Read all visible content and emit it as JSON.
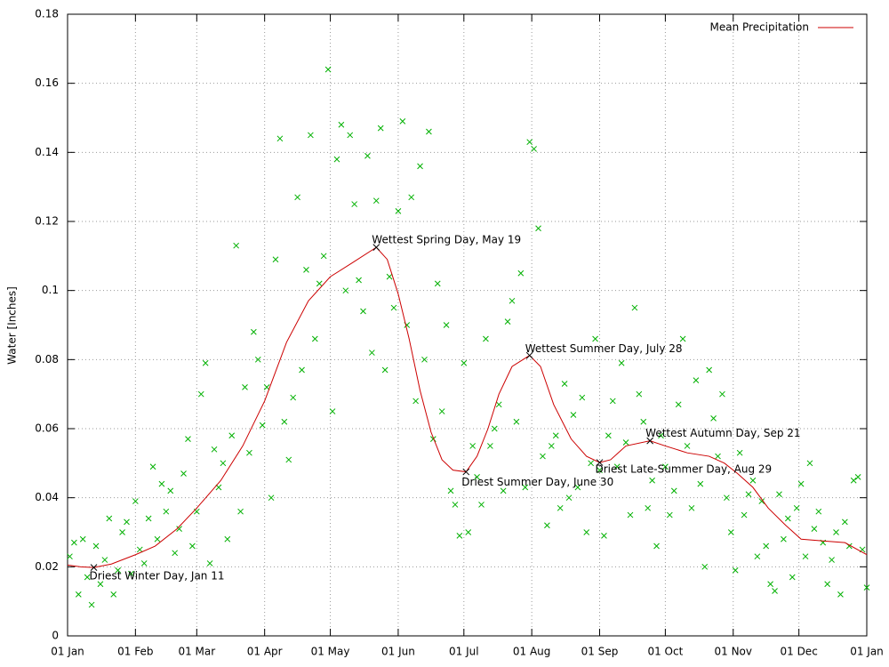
{
  "chart_data": {
    "type": "scatter",
    "ylabel": "Water [Inches]",
    "xlim": [
      0,
      365
    ],
    "ylim": [
      0,
      0.18
    ],
    "xticks": [
      {
        "value": 0,
        "label": "01 Jan"
      },
      {
        "value": 31,
        "label": "01 Feb"
      },
      {
        "value": 59,
        "label": "01 Mar"
      },
      {
        "value": 90,
        "label": "01 Apr"
      },
      {
        "value": 120,
        "label": "01 May"
      },
      {
        "value": 151,
        "label": "01 Jun"
      },
      {
        "value": 181,
        "label": "01 Jul"
      },
      {
        "value": 212,
        "label": "01 Aug"
      },
      {
        "value": 243,
        "label": "01 Sep"
      },
      {
        "value": 273,
        "label": "01 Oct"
      },
      {
        "value": 304,
        "label": "01 Nov"
      },
      {
        "value": 334,
        "label": "01 Dec"
      },
      {
        "value": 365,
        "label": "01 Jan"
      }
    ],
    "yticks": [
      0,
      0.02,
      0.04,
      0.06,
      0.08,
      0.1,
      0.12,
      0.14,
      0.16,
      0.18
    ],
    "grid": true,
    "legend": "top-right",
    "points": {
      "color": "#00b000",
      "x": [
        1,
        3,
        5,
        7,
        9,
        11,
        13,
        15,
        17,
        19,
        21,
        23,
        25,
        27,
        29,
        31,
        33,
        35,
        37,
        39,
        41,
        43,
        45,
        47,
        49,
        51,
        53,
        55,
        57,
        59,
        61,
        63,
        65,
        67,
        69,
        71,
        73,
        75,
        77,
        79,
        81,
        83,
        85,
        87,
        89,
        91,
        93,
        95,
        97,
        99,
        101,
        103,
        105,
        107,
        109,
        111,
        113,
        115,
        117,
        119,
        121,
        123,
        125,
        127,
        129,
        131,
        133,
        135,
        137,
        139,
        141,
        143,
        145,
        147,
        149,
        151,
        153,
        155,
        157,
        159,
        161,
        163,
        165,
        167,
        169,
        171,
        173,
        175,
        177,
        179,
        181,
        183,
        185,
        187,
        189,
        191,
        193,
        195,
        197,
        199,
        201,
        203,
        205,
        207,
        209,
        211,
        213,
        215,
        217,
        219,
        221,
        223,
        225,
        227,
        229,
        231,
        233,
        235,
        237,
        239,
        241,
        243,
        245,
        247,
        249,
        251,
        253,
        255,
        257,
        259,
        261,
        263,
        265,
        267,
        269,
        271,
        273,
        275,
        277,
        279,
        281,
        283,
        285,
        287,
        289,
        291,
        293,
        295,
        297,
        299,
        301,
        303,
        305,
        307,
        309,
        311,
        313,
        315,
        317,
        319,
        321,
        323,
        325,
        327,
        329,
        331,
        333,
        335,
        337,
        339,
        341,
        343,
        345,
        347,
        349,
        351,
        353,
        355,
        357,
        359,
        361,
        363,
        365
      ],
      "values": [
        0.023,
        0.027,
        0.012,
        0.028,
        0.017,
        0.009,
        0.026,
        0.015,
        0.022,
        0.034,
        0.012,
        0.019,
        0.03,
        0.033,
        0.018,
        0.039,
        0.025,
        0.021,
        0.034,
        0.049,
        0.028,
        0.044,
        0.036,
        0.042,
        0.024,
        0.031,
        0.047,
        0.057,
        0.026,
        0.036,
        0.07,
        0.079,
        0.021,
        0.054,
        0.043,
        0.05,
        0.028,
        0.058,
        0.113,
        0.036,
        0.072,
        0.053,
        0.088,
        0.08,
        0.061,
        0.072,
        0.04,
        0.109,
        0.144,
        0.062,
        0.051,
        0.069,
        0.127,
        0.077,
        0.106,
        0.145,
        0.086,
        0.102,
        0.11,
        0.164,
        0.065,
        0.138,
        0.148,
        0.1,
        0.145,
        0.125,
        0.103,
        0.094,
        0.139,
        0.082,
        0.126,
        0.147,
        0.077,
        0.104,
        0.095,
        0.123,
        0.149,
        0.09,
        0.127,
        0.068,
        0.136,
        0.08,
        0.146,
        0.057,
        0.102,
        0.065,
        0.09,
        0.042,
        0.038,
        0.029,
        0.079,
        0.03,
        0.055,
        0.046,
        0.038,
        0.086,
        0.055,
        0.06,
        0.067,
        0.042,
        0.091,
        0.097,
        0.062,
        0.105,
        0.043,
        0.143,
        0.141,
        0.118,
        0.052,
        0.032,
        0.055,
        0.058,
        0.037,
        0.073,
        0.04,
        0.064,
        0.043,
        0.069,
        0.03,
        0.05,
        0.086,
        0.048,
        0.029,
        0.058,
        0.068,
        0.049,
        0.079,
        0.056,
        0.035,
        0.095,
        0.07,
        0.062,
        0.037,
        0.045,
        0.026,
        0.058,
        0.049,
        0.035,
        0.042,
        0.067,
        0.086,
        0.055,
        0.037,
        0.074,
        0.044,
        0.02,
        0.077,
        0.063,
        0.052,
        0.07,
        0.04,
        0.03,
        0.019,
        0.053,
        0.035,
        0.041,
        0.045,
        0.023,
        0.039,
        0.026,
        0.015,
        0.013,
        0.041,
        0.028,
        0.034,
        0.017,
        0.037,
        0.044,
        0.023,
        0.05,
        0.031,
        0.036,
        0.027,
        0.015,
        0.022,
        0.03,
        0.012,
        0.033,
        0.026,
        0.045,
        0.046,
        0.025,
        0.014
      ]
    },
    "series": [
      {
        "name": "Mean Precipitation",
        "color": "#cc0000",
        "x": [
          0,
          6,
          12,
          20,
          31,
          40,
          50,
          59,
          70,
          80,
          90,
          100,
          110,
          120,
          130,
          141,
          146,
          151,
          156,
          161,
          166,
          171,
          176,
          182,
          187,
          192,
          197,
          203,
          211,
          216,
          222,
          230,
          237,
          243,
          248,
          255,
          266,
          273,
          283,
          293,
          300,
          306,
          313,
          320,
          328,
          335,
          345,
          355,
          365
        ],
        "values": [
          0.0205,
          0.02,
          0.0198,
          0.0208,
          0.0235,
          0.026,
          0.031,
          0.037,
          0.045,
          0.055,
          0.068,
          0.085,
          0.097,
          0.104,
          0.108,
          0.1125,
          0.109,
          0.099,
          0.086,
          0.071,
          0.059,
          0.051,
          0.048,
          0.0475,
          0.052,
          0.06,
          0.07,
          0.078,
          0.0812,
          0.078,
          0.067,
          0.057,
          0.052,
          0.0502,
          0.051,
          0.055,
          0.0565,
          0.055,
          0.053,
          0.052,
          0.05,
          0.047,
          0.043,
          0.037,
          0.032,
          0.028,
          0.0275,
          0.027,
          0.0235
        ]
      }
    ],
    "annotations": [
      {
        "text": "Driest Winter Day, Jan 11",
        "x": 12,
        "y": 0.0198
      },
      {
        "text": "Wettest Spring Day, May 19",
        "x": 141,
        "y": 0.1125
      },
      {
        "text": "Driest Summer Day, June 30",
        "x": 182,
        "y": 0.0475
      },
      {
        "text": "Wettest Summer Day, July 28",
        "x": 211,
        "y": 0.0812
      },
      {
        "text": "Driest Late-Summer Day, Aug 29",
        "x": 243,
        "y": 0.0502
      },
      {
        "text": "Wettest Autumn Day, Sep 21",
        "x": 266,
        "y": 0.0565
      }
    ]
  }
}
